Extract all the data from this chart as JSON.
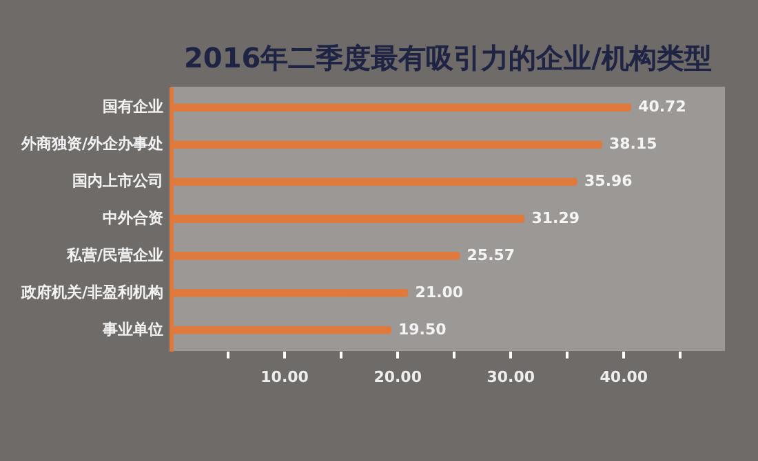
{
  "chart_data": {
    "type": "bar",
    "orientation": "horizontal",
    "title": "2016年二季度最有吸引力的企业/机构类型",
    "categories": [
      "国有企业",
      "外商独资/外企办事处",
      "国内上市公司",
      "中外合资",
      "私营/民营企业",
      "政府机关/非盈利机构",
      "事业单位"
    ],
    "values": [
      40.72,
      38.15,
      35.96,
      31.29,
      25.57,
      21.0,
      19.5
    ],
    "value_labels": [
      "40.72",
      "38.15",
      "35.96",
      "31.29",
      "25.57",
      "21.00",
      "19.50"
    ],
    "color": "#e07a3c",
    "xlim": [
      0,
      49
    ],
    "xticks": [
      {
        "value": 5,
        "label": null
      },
      {
        "value": 10,
        "label": "10.00"
      },
      {
        "value": 15,
        "label": null
      },
      {
        "value": 20,
        "label": "20.00"
      },
      {
        "value": 25,
        "label": null
      },
      {
        "value": 30,
        "label": "30.00"
      },
      {
        "value": 35,
        "label": null
      },
      {
        "value": 40,
        "label": "40.00"
      },
      {
        "value": 45,
        "label": null
      }
    ],
    "grid": false
  }
}
